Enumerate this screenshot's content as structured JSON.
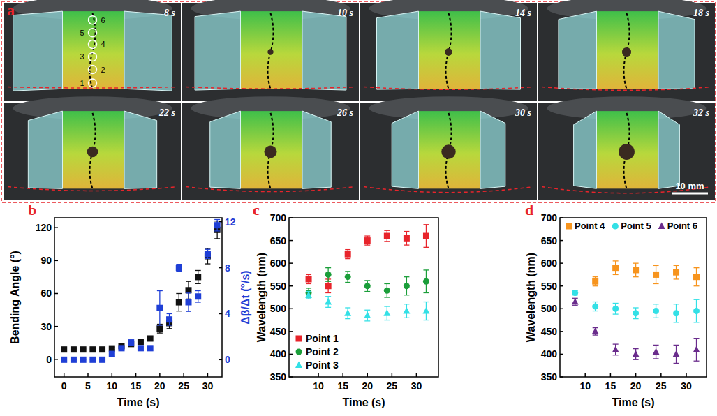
{
  "image_panel": {
    "panel": "a",
    "frames": [
      "8 s",
      "10 s",
      "14 s",
      "18 s",
      "22 s",
      "26 s",
      "30 s",
      "32 s"
    ],
    "point_labels": [
      "1",
      "2",
      "3",
      "4",
      "5",
      "6"
    ],
    "scale_bar": "10 mm"
  },
  "chart_data": [
    {
      "type": "scatter",
      "panel": "b",
      "x_label": "Time (s)",
      "y_label": "Bending Angle (°)",
      "y2_label": "Δβ/Δt (°/s)",
      "x": [
        0,
        2,
        4,
        6,
        8,
        10,
        12,
        14,
        16,
        18,
        20,
        22,
        24,
        26,
        28,
        30,
        32
      ],
      "xlim": [
        -2,
        33
      ],
      "xticks": [
        0,
        5,
        10,
        15,
        20,
        25,
        30
      ],
      "ylim": [
        -16,
        129
      ],
      "yticks": [
        0,
        30,
        60,
        90,
        120
      ],
      "y2lim": [
        -1.5,
        12.35
      ],
      "y2ticks": [
        0,
        4,
        8,
        12
      ],
      "series": [
        {
          "color": "#111111",
          "marker": "square",
          "values": [
            9,
            9,
            9,
            9,
            9,
            10,
            12,
            14,
            16,
            19,
            28,
            33,
            52,
            63,
            75,
            94,
            118
          ],
          "errors": [
            0.5,
            0.5,
            0.5,
            0.5,
            0.5,
            1,
            1,
            1,
            1,
            2,
            4,
            5,
            8,
            8,
            6,
            7,
            8
          ]
        },
        {
          "color": "#1f3fd6",
          "marker": "square",
          "axis": "y2",
          "values": [
            0,
            0,
            0,
            0,
            0,
            0.5,
            1,
            1.5,
            1,
            1,
            4.5,
            3.5,
            8,
            5,
            5.5,
            9.2,
            11.7
          ],
          "errors": [
            0,
            0,
            0,
            0,
            0,
            0.2,
            0.2,
            0.2,
            0.2,
            0.2,
            1.5,
            0.5,
            0.3,
            0.8,
            0.5,
            0.4,
            0.5
          ]
        }
      ]
    },
    {
      "type": "scatter",
      "panel": "c",
      "x_label": "Time (s)",
      "y_label": "Wavelength (nm)",
      "x": [
        8,
        12,
        16,
        20,
        24,
        28,
        32
      ],
      "xlim": [
        4,
        34.5
      ],
      "xticks": [
        10,
        15,
        20,
        25,
        30
      ],
      "ylim": [
        350,
        700
      ],
      "yticks": [
        350,
        400,
        450,
        500,
        550,
        600,
        650,
        700
      ],
      "legend": "lower left",
      "series": [
        {
          "name": "Point 1",
          "color": "#e8242b",
          "marker": "square",
          "values": [
            565,
            550,
            620,
            650,
            660,
            655,
            660
          ],
          "errors": [
            10,
            15,
            10,
            10,
            12,
            15,
            25
          ]
        },
        {
          "name": "Point 2",
          "color": "#1b9e3a",
          "marker": "circle",
          "values": [
            535,
            575,
            570,
            550,
            540,
            550,
            560
          ],
          "errors": [
            10,
            15,
            12,
            12,
            15,
            20,
            25
          ]
        },
        {
          "name": "Point 3",
          "color": "#33e0e6",
          "marker": "triangle",
          "values": [
            530,
            515,
            490,
            485,
            490,
            495,
            495
          ],
          "errors": [
            8,
            12,
            12,
            12,
            15,
            15,
            20
          ]
        }
      ]
    },
    {
      "type": "scatter",
      "panel": "d",
      "x_label": "Time (s)",
      "y_label": "Wavelength (nm)",
      "x": [
        8,
        12,
        16,
        20,
        24,
        28,
        32
      ],
      "xlim": [
        5,
        34
      ],
      "xticks": [
        10,
        15,
        20,
        25,
        30
      ],
      "ylim": [
        350,
        700
      ],
      "yticks": [
        350,
        400,
        450,
        500,
        550,
        600,
        650,
        700
      ],
      "legend": "top",
      "series": [
        {
          "name": "Point 4",
          "color": "#f7941d",
          "marker": "square",
          "values": [
            null,
            560,
            590,
            585,
            575,
            580,
            570
          ],
          "errors": [
            null,
            10,
            15,
            15,
            20,
            15,
            20
          ]
        },
        {
          "name": "Point 5",
          "color": "#33e0e6",
          "marker": "circle",
          "values": [
            535,
            505,
            500,
            490,
            495,
            490,
            495
          ],
          "errors": [
            5,
            10,
            12,
            12,
            15,
            20,
            25
          ]
        },
        {
          "name": "Point 6",
          "color": "#6a2c8c",
          "marker": "triangle",
          "values": [
            515,
            450,
            410,
            400,
            405,
            400,
            410
          ],
          "errors": [
            8,
            8,
            12,
            12,
            15,
            20,
            25
          ]
        }
      ]
    }
  ]
}
